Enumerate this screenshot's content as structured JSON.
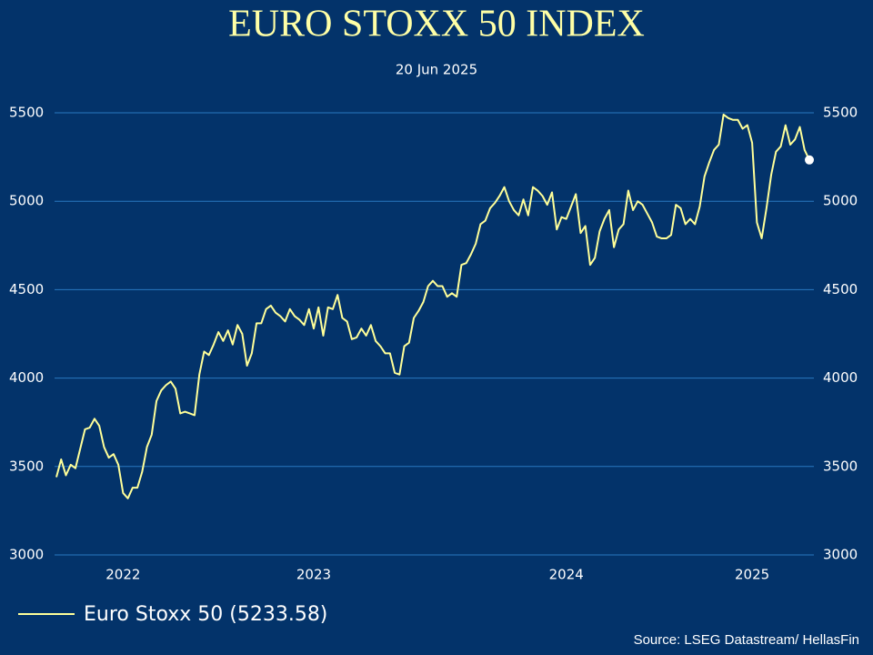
{
  "chart_data": {
    "type": "line",
    "title": "EURO STOXX 50 INDEX",
    "subtitle": "20 Jun 2025",
    "source": "Source: LSEG Datastream/ HellasFin",
    "categories": [
      null,
      null,
      null,
      null,
      null,
      null,
      null,
      null,
      null,
      null,
      null,
      null,
      null,
      null,
      "2022",
      null,
      null,
      null,
      null,
      null,
      null,
      null,
      null,
      null,
      null,
      null,
      null,
      null,
      null,
      null,
      null,
      null,
      null,
      null,
      null,
      null,
      null,
      null,
      null,
      null,
      null,
      null,
      null,
      null,
      null,
      null,
      null,
      null,
      null,
      null,
      null,
      null,
      null,
      null,
      "2023",
      null,
      null,
      null,
      null,
      null,
      null,
      null,
      null,
      null,
      null,
      null,
      null,
      null,
      null,
      null,
      null,
      null,
      null,
      null,
      null,
      null,
      null,
      null,
      null,
      null,
      null,
      null,
      null,
      null,
      null,
      null,
      null,
      null,
      null,
      null,
      null,
      null,
      null,
      null,
      null,
      null,
      null,
      null,
      null,
      null,
      null,
      null,
      null,
      null,
      null,
      null,
      null,
      "2024",
      null,
      null,
      null,
      null,
      null,
      null,
      null,
      null,
      null,
      null,
      null,
      null,
      null,
      null,
      null,
      null,
      null,
      null,
      null,
      null,
      null,
      null,
      null,
      null,
      null,
      null,
      null,
      null,
      null,
      null,
      null,
      null,
      null,
      null,
      null,
      null,
      null,
      null,
      "2025",
      null,
      null,
      null,
      null,
      null,
      null,
      null,
      null,
      null,
      null,
      null,
      null
    ],
    "series": [
      {
        "name": "Euro Stoxx 50 (5233.58)",
        "color": "#ffff99",
        "values": [
          3440,
          3540,
          3450,
          3510,
          3490,
          3600,
          3710,
          3720,
          3770,
          3730,
          3610,
          3550,
          3570,
          3510,
          3350,
          3320,
          3380,
          3380,
          3470,
          3610,
          3680,
          3870,
          3930,
          3960,
          3980,
          3940,
          3800,
          3810,
          3800,
          3790,
          4020,
          4150,
          4130,
          4190,
          4260,
          4210,
          4270,
          4190,
          4300,
          4250,
          4070,
          4140,
          4310,
          4310,
          4390,
          4410,
          4370,
          4350,
          4320,
          4390,
          4350,
          4330,
          4300,
          4390,
          4280,
          4400,
          4240,
          4400,
          4390,
          4470,
          4340,
          4320,
          4220,
          4230,
          4280,
          4240,
          4300,
          4210,
          4180,
          4140,
          4140,
          4030,
          4020,
          4180,
          4200,
          4340,
          4380,
          4430,
          4520,
          4550,
          4520,
          4520,
          4460,
          4480,
          4460,
          4640,
          4650,
          4700,
          4760,
          4870,
          4890,
          4960,
          4990,
          5030,
          5080,
          5000,
          4950,
          4920,
          5010,
          4920,
          5080,
          5060,
          5030,
          4980,
          5050,
          4840,
          4910,
          4900,
          4970,
          5040,
          4820,
          4860,
          4640,
          4680,
          4830,
          4900,
          4950,
          4740,
          4840,
          4870,
          5060,
          4950,
          5000,
          4980,
          4930,
          4880,
          4800,
          4790,
          4790,
          4810,
          4980,
          4960,
          4870,
          4900,
          4870,
          4970,
          5140,
          5220,
          5290,
          5320,
          5490,
          5470,
          5460,
          5460,
          5410,
          5430,
          5330,
          4880,
          4790,
          4960,
          5150,
          5280,
          5310,
          5430,
          5320,
          5350,
          5420,
          5290,
          5233.58
        ]
      }
    ],
    "ylim": [
      3000,
      5500
    ],
    "yticks": [
      3000,
      3500,
      4000,
      4500,
      5000,
      5500
    ],
    "y2lim": [
      3000,
      5500
    ],
    "y2ticks": [
      3000,
      3500,
      4000,
      4500,
      5000,
      5500
    ],
    "grid": true
  }
}
